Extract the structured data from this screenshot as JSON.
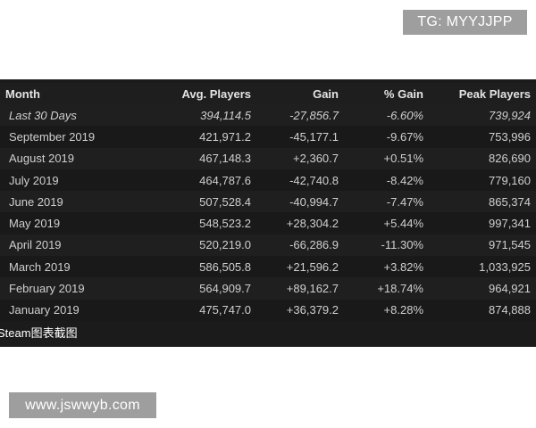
{
  "watermark_top": "TG: MYYJJPP",
  "watermark_bottom": "www.jswwyb.com",
  "table": {
    "headers": {
      "month": "Month",
      "avg_players": "Avg. Players",
      "gain": "Gain",
      "pct_gain": "% Gain",
      "peak_players": "Peak Players"
    },
    "rows": [
      {
        "month": "Last 30 Days",
        "avg": "394,114.5",
        "gain": "-27,856.7",
        "pct": "-6.60%",
        "peak": "739,924",
        "trend": "neg"
      },
      {
        "month": "September 2019",
        "avg": "421,971.2",
        "gain": "-45,177.1",
        "pct": "-9.67%",
        "peak": "753,996",
        "trend": "neg"
      },
      {
        "month": "August 2019",
        "avg": "467,148.3",
        "gain": "+2,360.7",
        "pct": "+0.51%",
        "peak": "826,690",
        "trend": "pos"
      },
      {
        "month": "July 2019",
        "avg": "464,787.6",
        "gain": "-42,740.8",
        "pct": "-8.42%",
        "peak": "779,160",
        "trend": "neg"
      },
      {
        "month": "June 2019",
        "avg": "507,528.4",
        "gain": "-40,994.7",
        "pct": "-7.47%",
        "peak": "865,374",
        "trend": "neg"
      },
      {
        "month": "May 2019",
        "avg": "548,523.2",
        "gain": "+28,304.2",
        "pct": "+5.44%",
        "peak": "997,341",
        "trend": "pos"
      },
      {
        "month": "April 2019",
        "avg": "520,219.0",
        "gain": "-66,286.9",
        "pct": "-11.30%",
        "peak": "971,545",
        "trend": "neg"
      },
      {
        "month": "March 2019",
        "avg": "586,505.8",
        "gain": "+21,596.2",
        "pct": "+3.82%",
        "peak": "1,033,925",
        "trend": "pos"
      },
      {
        "month": "February 2019",
        "avg": "564,909.7",
        "gain": "+89,162.7",
        "pct": "+18.74%",
        "peak": "964,921",
        "trend": "pos"
      },
      {
        "month": "January 2019",
        "avg": "475,747.0",
        "gain": "+36,379.2",
        "pct": "+8.28%",
        "peak": "874,888",
        "trend": "pos"
      }
    ]
  },
  "footer_caption": "Steam图表截图",
  "colors": {
    "positive": "#6cc04a",
    "negative": "#d9534f",
    "panel_background": "#1b1b1b"
  }
}
